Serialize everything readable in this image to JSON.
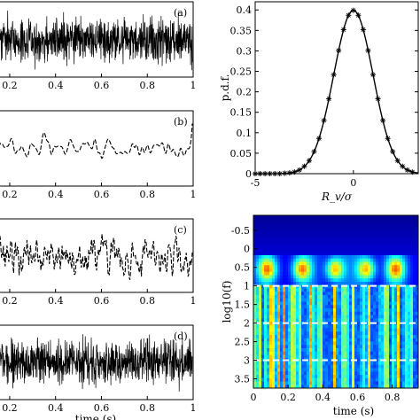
{
  "chart_data": [
    {
      "type": "line",
      "panel_label": "(a)",
      "description_kind": "broadband noise signal",
      "xlim": [
        0.15,
        1.0
      ],
      "x_ticks": [
        "0.2",
        "0.4",
        "0.6",
        "0.8",
        "1"
      ],
      "xlabel": "",
      "amplitude": 1.0,
      "seed": 11,
      "samples": 900,
      "smooth": 0
    },
    {
      "type": "line",
      "panel_label": "(b)",
      "description_kind": "low-frequency oscillation (dashed)",
      "xlim": [
        0.15,
        1.0
      ],
      "x_ticks": [
        "0.2",
        "0.4",
        "0.6",
        "0.8",
        "1"
      ],
      "xlabel": "",
      "amplitude": 1.0,
      "seed": 23,
      "samples": 300,
      "smooth": 6
    },
    {
      "type": "line",
      "panel_label": "(c)",
      "description_kind": "mid-frequency signal",
      "xlim": [
        0.15,
        1.0
      ],
      "x_ticks": [
        "0.2",
        "0.4",
        "0.6",
        "0.8",
        "1"
      ],
      "xlabel": "",
      "amplitude": 1.0,
      "seed": 37,
      "samples": 320,
      "smooth": 1
    },
    {
      "type": "line",
      "panel_label": "(d)",
      "description_kind": "high-frequency noise signal",
      "xlim": [
        0.15,
        1.0
      ],
      "x_ticks": [
        "0.2",
        "0.4",
        "0.6",
        "0.8",
        "1"
      ],
      "xlabel": "time (s)",
      "amplitude": 1.0,
      "seed": 53,
      "samples": 900,
      "smooth": 0
    },
    {
      "type": "scatter",
      "title": "",
      "xlabel": "R_v/σ",
      "ylabel": "p.d.f.",
      "xlim": [
        -5,
        3.3
      ],
      "ylim": [
        0,
        0.42
      ],
      "x_ticks": [
        -5,
        0
      ],
      "y_ticks": [
        0,
        0.05,
        0.1,
        0.15,
        0.2,
        0.25,
        0.3,
        0.35,
        0.4
      ],
      "series": [
        {
          "kind": "gaussian fit line",
          "mean": 0,
          "sigma": 1
        },
        {
          "kind": "markers",
          "x": [
            -5.0,
            -4.75,
            -4.5,
            -4.25,
            -4.0,
            -3.75,
            -3.5,
            -3.25,
            -3.0,
            -2.75,
            -2.5,
            -2.25,
            -2.0,
            -1.75,
            -1.5,
            -1.25,
            -1.0,
            -0.75,
            -0.5,
            -0.25,
            0.0,
            0.25,
            0.5,
            0.75,
            1.0,
            1.25,
            1.5,
            1.75,
            2.0,
            2.25,
            2.5,
            2.75,
            3.0
          ],
          "y": [
            0.0,
            0.0,
            0.0,
            0.0,
            0.0,
            0.0,
            0.001,
            0.002,
            0.004,
            0.009,
            0.018,
            0.032,
            0.054,
            0.086,
            0.13,
            0.183,
            0.242,
            0.301,
            0.352,
            0.387,
            0.399,
            0.387,
            0.352,
            0.301,
            0.242,
            0.183,
            0.13,
            0.086,
            0.054,
            0.032,
            0.018,
            0.009,
            0.004
          ]
        }
      ]
    },
    {
      "type": "heatmap",
      "xlabel": "time (s)",
      "ylabel": "log10(f)",
      "xlim": [
        0,
        0.95
      ],
      "ylim": [
        -0.9,
        3.75
      ],
      "x_ticks": [
        0,
        0.2,
        0.4,
        0.6,
        0.8
      ],
      "x_tick_labels": [
        "0",
        "0.2",
        "0.4",
        "0.6",
        "0.8"
      ],
      "y_ticks": [
        -0.5,
        0,
        0.5,
        1,
        1.5,
        2,
        2.5,
        3,
        3.5
      ],
      "y_tick_labels": [
        "-0.5",
        "0",
        "0.5",
        "1",
        "1.5",
        "2",
        "2.5",
        "3",
        "3.5"
      ],
      "dashed_lines_y": [
        1,
        2,
        3
      ],
      "colormap": "jet",
      "hotspots_time": [
        0.08,
        0.28,
        0.47,
        0.65,
        0.82
      ]
    }
  ]
}
